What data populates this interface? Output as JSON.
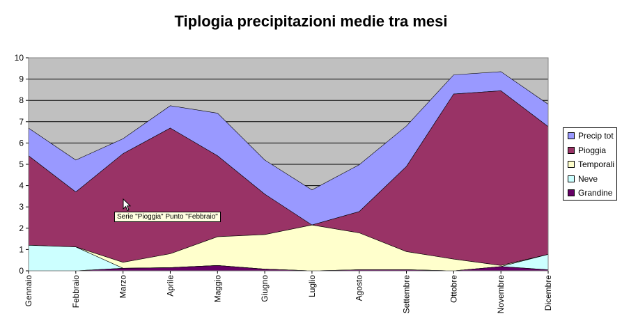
{
  "chart_data": {
    "type": "area",
    "stacked": true,
    "title": "Tiplogia precipitazioni medie tra mesi",
    "ylim": [
      0,
      10
    ],
    "yticks": [
      0,
      1,
      2,
      3,
      4,
      5,
      6,
      7,
      8,
      9,
      10
    ],
    "grid": true,
    "legend_position": "right",
    "categories": [
      "Gennaio",
      "Febbraio",
      "Marzo",
      "Aprile",
      "Maggio",
      "Giugno",
      "Luglio",
      "Agosto",
      "Settembre",
      "Ottobre",
      "Novembre",
      "Dicembre"
    ],
    "series": [
      {
        "name": "Grandine",
        "color": "#660066",
        "values": [
          0.0,
          0.0,
          0.12,
          0.15,
          0.25,
          0.08,
          0.0,
          0.05,
          0.05,
          0.0,
          0.2,
          0.05
        ]
      },
      {
        "name": "Neve",
        "color": "#ccffff",
        "values": [
          1.2,
          1.12,
          0.0,
          0.0,
          0.0,
          0.0,
          0.0,
          0.0,
          0.0,
          0.0,
          0.0,
          0.72
        ]
      },
      {
        "name": "Temporali",
        "color": "#ffffcc",
        "values": [
          0.0,
          0.0,
          0.28,
          0.65,
          1.35,
          1.62,
          2.15,
          1.73,
          0.85,
          0.55,
          0.05,
          0.0
        ]
      },
      {
        "name": "Pioggia",
        "color": "#993366",
        "values": [
          4.2,
          2.58,
          5.1,
          5.9,
          3.8,
          1.9,
          0.0,
          1.0,
          4.0,
          7.75,
          8.2,
          6.0
        ]
      },
      {
        "name": "Precip tot",
        "color": "#9999ff",
        "values": [
          1.3,
          1.5,
          0.7,
          1.05,
          2.0,
          1.6,
          1.65,
          2.2,
          1.9,
          0.9,
          0.9,
          1.05
        ]
      }
    ],
    "legend_order": [
      "Precip tot",
      "Pioggia",
      "Temporali",
      "Neve",
      "Grandine"
    ]
  },
  "tooltip": {
    "text": "Serie \"Pioggia\" Punto \"Febbraio\""
  }
}
